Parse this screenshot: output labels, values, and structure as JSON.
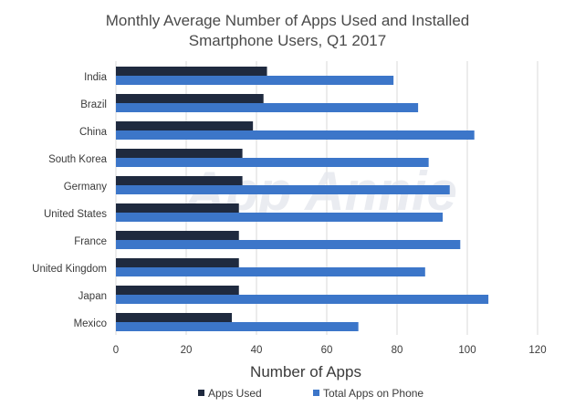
{
  "chart_data": {
    "type": "bar",
    "orientation": "horizontal",
    "title_lines": [
      "Monthly Average Number of Apps Used and Installed",
      "Smartphone Users, Q1 2017"
    ],
    "categories": [
      "India",
      "Brazil",
      "China",
      "South Korea",
      "Germany",
      "United States",
      "France",
      "United Kingdom",
      "Japan",
      "Mexico"
    ],
    "series": [
      {
        "name": "Apps Used",
        "color": "#1f2a3f",
        "values": [
          43,
          42,
          39,
          36,
          36,
          35,
          35,
          35,
          35,
          33
        ]
      },
      {
        "name": "Total Apps on Phone",
        "color": "#3c76c9",
        "values": [
          79,
          86,
          102,
          89,
          95,
          93,
          98,
          88,
          106,
          69
        ]
      }
    ],
    "xlabel": "Number of Apps",
    "ylabel": "",
    "xlim": [
      0,
      120
    ],
    "xticks": [
      0,
      20,
      40,
      60,
      80,
      100,
      120
    ],
    "grid": "vertical",
    "legend_position": "bottom",
    "watermark": "App Annie"
  }
}
